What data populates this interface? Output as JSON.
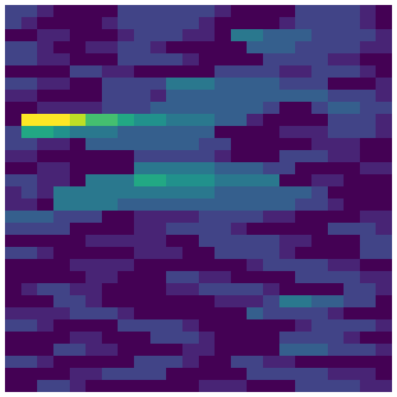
{
  "chart_data": {
    "type": "heatmap",
    "color": "viridis",
    "zlim": [
      0,
      10
    ],
    "tick_labels": false,
    "cells": [
      [
        2,
        2,
        1,
        0,
        0,
        0,
        0,
        2,
        2,
        2,
        2,
        2,
        2,
        1,
        0,
        0,
        0,
        0,
        2,
        2,
        2,
        2,
        1,
        0
      ],
      [
        2,
        1,
        0,
        0,
        0,
        0,
        1,
        2,
        2,
        2,
        2,
        2,
        1,
        0,
        0,
        0,
        0,
        1,
        2,
        2,
        2,
        2,
        1,
        0
      ],
      [
        0,
        0,
        1,
        1,
        0,
        0,
        0,
        1,
        2,
        2,
        2,
        1,
        1,
        0,
        4,
        4,
        3,
        3,
        3,
        2,
        2,
        2,
        2,
        1
      ],
      [
        2,
        2,
        1,
        0,
        0,
        1,
        1,
        2,
        2,
        1,
        0,
        0,
        0,
        0,
        0,
        3,
        3,
        3,
        2,
        2,
        2,
        2,
        1,
        1
      ],
      [
        2,
        2,
        1,
        1,
        0,
        0,
        0,
        2,
        2,
        2,
        2,
        1,
        0,
        0,
        0,
        0,
        2,
        2,
        2,
        2,
        1,
        1,
        0,
        0
      ],
      [
        0,
        0,
        0,
        0,
        2,
        2,
        1,
        1,
        0,
        0,
        0,
        0,
        0,
        2,
        2,
        2,
        2,
        1,
        1,
        2,
        2,
        2,
        1,
        0
      ],
      [
        2,
        2,
        1,
        1,
        0,
        0,
        2,
        2,
        2,
        2,
        4,
        4,
        4,
        3,
        3,
        3,
        3,
        2,
        2,
        2,
        0,
        0,
        0,
        1
      ],
      [
        1,
        1,
        0,
        0,
        0,
        0,
        2,
        2,
        2,
        1,
        3,
        3,
        3,
        3,
        3,
        3,
        3,
        3,
        3,
        3,
        2,
        2,
        2,
        1
      ],
      [
        0,
        0,
        1,
        1,
        1,
        1,
        2,
        2,
        2,
        3,
        3,
        3,
        3,
        3,
        3,
        3,
        2,
        0,
        0,
        2,
        3,
        3,
        2,
        2
      ],
      [
        0,
        10,
        10,
        10,
        9,
        7,
        7,
        6,
        5,
        5,
        4,
        4,
        4,
        3,
        3,
        1,
        0,
        0,
        0,
        0,
        2,
        2,
        2,
        1
      ],
      [
        2,
        6,
        6,
        5,
        4,
        4,
        4,
        3,
        3,
        3,
        3,
        3,
        3,
        0,
        0,
        0,
        0,
        1,
        1,
        1,
        2,
        2,
        2,
        1
      ],
      [
        2,
        2,
        1,
        1,
        0,
        3,
        3,
        3,
        3,
        3,
        3,
        3,
        2,
        2,
        0,
        0,
        0,
        0,
        0,
        1,
        1,
        1,
        0,
        0
      ],
      [
        1,
        1,
        0,
        0,
        0,
        0,
        0,
        0,
        2,
        2,
        2,
        2,
        2,
        1,
        0,
        0,
        0,
        2,
        2,
        2,
        1,
        1,
        0,
        0
      ],
      [
        0,
        0,
        1,
        1,
        0,
        0,
        0,
        0,
        4,
        4,
        4,
        4,
        4,
        3,
        3,
        3,
        2,
        2,
        0,
        0,
        0,
        0,
        1,
        1
      ],
      [
        2,
        2,
        1,
        1,
        0,
        4,
        4,
        4,
        6,
        6,
        5,
        5,
        5,
        4,
        4,
        4,
        4,
        0,
        0,
        1,
        1,
        0,
        0,
        0
      ],
      [
        1,
        2,
        1,
        4,
        4,
        4,
        4,
        4,
        4,
        4,
        4,
        4,
        4,
        3,
        3,
        3,
        3,
        3,
        3,
        2,
        0,
        0,
        0,
        0
      ],
      [
        1,
        1,
        0,
        4,
        4,
        4,
        4,
        3,
        3,
        3,
        3,
        3,
        3,
        3,
        3,
        3,
        3,
        3,
        2,
        2,
        1,
        0,
        0,
        0
      ],
      [
        3,
        3,
        3,
        2,
        2,
        2,
        0,
        0,
        1,
        1,
        1,
        1,
        2,
        2,
        2,
        2,
        1,
        1,
        0,
        0,
        0,
        0,
        1,
        1
      ],
      [
        2,
        2,
        2,
        2,
        0,
        0,
        0,
        0,
        1,
        1,
        2,
        2,
        2,
        2,
        1,
        0,
        0,
        0,
        0,
        0,
        2,
        2,
        2,
        1
      ],
      [
        0,
        0,
        0,
        0,
        0,
        1,
        1,
        1,
        1,
        1,
        0,
        0,
        2,
        2,
        2,
        2,
        2,
        1,
        1,
        0,
        0,
        0,
        2,
        2
      ],
      [
        2,
        2,
        1,
        0,
        0,
        0,
        0,
        0,
        1,
        1,
        1,
        0,
        0,
        2,
        2,
        2,
        2,
        1,
        0,
        0,
        0,
        0,
        2,
        2
      ],
      [
        0,
        0,
        0,
        0,
        1,
        1,
        1,
        1,
        0,
        0,
        0,
        0,
        0,
        0,
        0,
        1,
        2,
        2,
        2,
        2,
        1,
        1,
        0,
        0
      ],
      [
        0,
        0,
        0,
        0,
        0,
        1,
        1,
        0,
        0,
        0,
        2,
        2,
        1,
        1,
        0,
        0,
        0,
        0,
        2,
        2,
        2,
        2,
        1,
        1
      ],
      [
        0,
        1,
        2,
        2,
        1,
        1,
        0,
        0,
        0,
        0,
        1,
        1,
        2,
        2,
        2,
        2,
        1,
        0,
        0,
        0,
        0,
        2,
        2,
        1
      ],
      [
        0,
        0,
        0,
        2,
        2,
        1,
        0,
        0,
        0,
        0,
        0,
        0,
        0,
        1,
        1,
        1,
        2,
        4,
        4,
        3,
        3,
        2,
        2,
        0
      ],
      [
        1,
        1,
        1,
        1,
        2,
        2,
        2,
        1,
        0,
        0,
        0,
        0,
        0,
        0,
        0,
        3,
        2,
        2,
        2,
        2,
        1,
        0,
        0,
        0
      ],
      [
        2,
        2,
        1,
        0,
        0,
        0,
        0,
        2,
        2,
        2,
        2,
        1,
        0,
        0,
        0,
        0,
        0,
        0,
        1,
        2,
        2,
        2,
        2,
        1
      ],
      [
        0,
        0,
        0,
        0,
        1,
        1,
        0,
        0,
        0,
        2,
        2,
        2,
        1,
        0,
        0,
        0,
        0,
        2,
        2,
        2,
        2,
        1,
        0,
        0
      ],
      [
        0,
        0,
        0,
        2,
        2,
        1,
        1,
        0,
        0,
        0,
        0,
        1,
        1,
        0,
        0,
        0,
        0,
        3,
        3,
        3,
        2,
        2,
        2,
        1
      ],
      [
        2,
        2,
        1,
        0,
        0,
        0,
        0,
        0,
        2,
        2,
        2,
        1,
        0,
        0,
        2,
        2,
        1,
        1,
        0,
        0,
        0,
        0,
        0,
        0
      ],
      [
        0,
        0,
        0,
        0,
        1,
        1,
        2,
        2,
        2,
        2,
        0,
        0,
        0,
        0,
        0,
        2,
        2,
        2,
        2,
        2,
        1,
        1,
        1,
        0
      ],
      [
        0,
        0,
        2,
        2,
        1,
        0,
        0,
        0,
        0,
        0,
        0,
        0,
        1,
        1,
        1,
        0,
        0,
        0,
        2,
        2,
        2,
        2,
        1,
        1
      ]
    ]
  }
}
